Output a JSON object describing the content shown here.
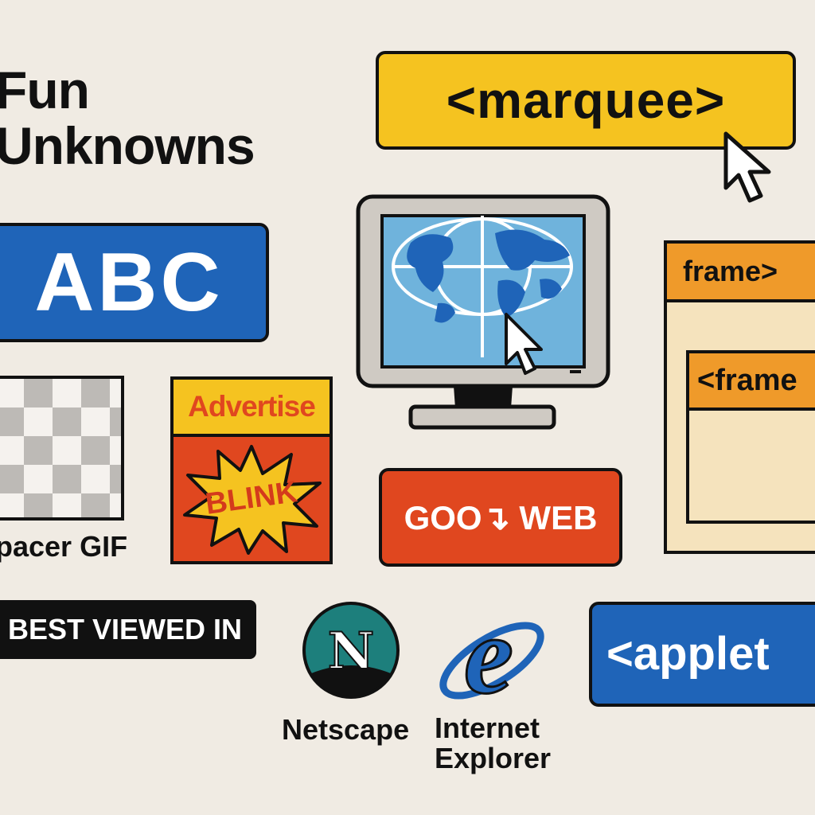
{
  "title": {
    "line1": "Fun",
    "line2": "Unknowns"
  },
  "marquee": {
    "label": "<marquee>"
  },
  "abc": {
    "label": "ABC"
  },
  "spacer": {
    "label": "pacer GIF"
  },
  "advert": {
    "top_label": "Advertise",
    "burst_label": "BLINK"
  },
  "goweb": {
    "label": "GOO↴ WEB"
  },
  "frameset": {
    "outer_label": "frame>",
    "inner_label": "<frame"
  },
  "best_viewed": {
    "label": "BEST VIEWED IN"
  },
  "browsers": {
    "netscape": {
      "label": "Netscape",
      "letter": "N"
    },
    "ie": {
      "line1": "Internet",
      "line2": "Explorer",
      "letter": "e"
    }
  },
  "applet": {
    "label": "<applet"
  },
  "colors": {
    "background": "#f0ebe3",
    "yellow": "#f5c320",
    "blue": "#1f64b8",
    "red": "#e0471f",
    "orange": "#ef9a2a",
    "cream": "#f5e3bd",
    "teal": "#1d7f7c"
  },
  "icons": [
    "arrow-cursor-icon",
    "globe-icon",
    "monitor-icon",
    "starburst-icon",
    "netscape-logo",
    "internet-explorer-logo"
  ]
}
